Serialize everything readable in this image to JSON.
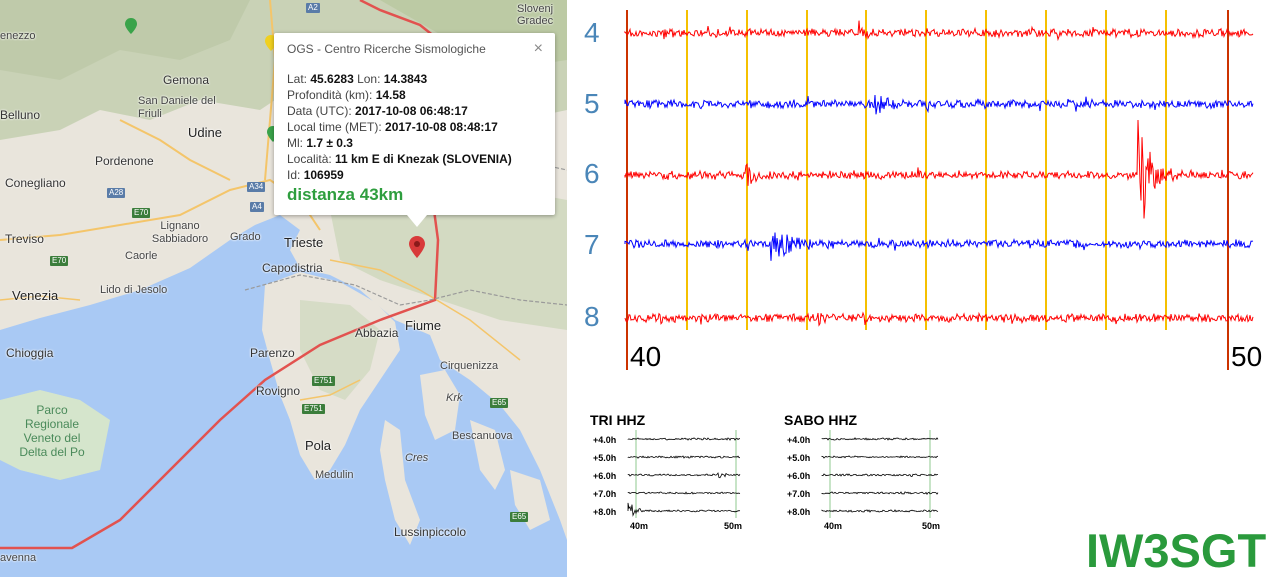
{
  "map": {
    "places": [
      {
        "name": "Slovenj Gradec",
        "type": "small"
      },
      {
        "name": "Gemona",
        "type": "city"
      },
      {
        "name": "San Daniele del Friuli",
        "type": "small"
      },
      {
        "name": "Belluno",
        "type": "city"
      },
      {
        "name": "Udine",
        "type": "big"
      },
      {
        "name": "Pordenone",
        "type": "city"
      },
      {
        "name": "Conegliano",
        "type": "city"
      },
      {
        "name": "Lignano Sabbiadoro",
        "type": "small"
      },
      {
        "name": "Grado",
        "type": "small"
      },
      {
        "name": "Treviso",
        "type": "city"
      },
      {
        "name": "Caorle",
        "type": "small"
      },
      {
        "name": "Venezia",
        "type": "big"
      },
      {
        "name": "Lido di Jesolo",
        "type": "small"
      },
      {
        "name": "Trieste",
        "type": "big"
      },
      {
        "name": "Capodistria",
        "type": "city"
      },
      {
        "name": "Abbazia",
        "type": "city"
      },
      {
        "name": "Fiume",
        "type": "big"
      },
      {
        "name": "Chioggia",
        "type": "city"
      },
      {
        "name": "Parenzo",
        "type": "city"
      },
      {
        "name": "Rovigno",
        "type": "city"
      },
      {
        "name": "Cirquenizza",
        "type": "small"
      },
      {
        "name": "Krk",
        "type": "small"
      },
      {
        "name": "Bescanuova",
        "type": "small"
      },
      {
        "name": "Pola",
        "type": "big"
      },
      {
        "name": "Cres",
        "type": "small"
      },
      {
        "name": "Medulin",
        "type": "small"
      },
      {
        "name": "Lussinpiccolo",
        "type": "city"
      },
      {
        "name": "avenna",
        "type": "small"
      },
      {
        "name": "enezzo",
        "type": "small"
      }
    ],
    "sea_label": "Parco Regionale Veneto del Delta del Po",
    "roads": [
      "A2",
      "A28",
      "A34",
      "E70",
      "E70",
      "A4",
      "E751",
      "E751",
      "E65",
      "E65"
    ],
    "colors": {
      "sea": "#a9c9f4",
      "land": "#e9e5dc",
      "mountains": "#c8d2b5",
      "border": "#e2524f",
      "pin": "#d83a3a"
    }
  },
  "popup": {
    "title": "OGS - Centro Ricerche Sismologiche",
    "close": "×",
    "rows": [
      {
        "label": "Lat: ",
        "value": "45.6283",
        "extra_label": " Lon: ",
        "extra_value": "14.3843"
      },
      {
        "label": "Profondità (km): ",
        "value": "14.58"
      },
      {
        "label": "Data (UTC): ",
        "value": "2017-10-08 06:48:17"
      },
      {
        "label": "Local time (MET): ",
        "value": "2017-10-08 08:48:17"
      },
      {
        "label": "Ml: ",
        "value": "1.7 ± 0.3"
      },
      {
        "label": "Località: ",
        "value": "11 km E di Knezak (SLOVENIA)"
      },
      {
        "label": "Id: ",
        "value": "106959"
      }
    ],
    "distance": "distanza 43km"
  },
  "seismogram": {
    "rows": [
      {
        "label": "4",
        "color": "#ff0000"
      },
      {
        "label": "5",
        "color": "#0000ff"
      },
      {
        "label": "6",
        "color": "#ff0000"
      },
      {
        "label": "7",
        "color": "#0000ff"
      },
      {
        "label": "8",
        "color": "#ff0000"
      }
    ],
    "ticks": [
      "40",
      "50"
    ],
    "gridline_color": "#f5c000",
    "edge_color": "#cc3300"
  },
  "panels": [
    {
      "title": "TRI HHZ",
      "rows": [
        "+4.0h",
        "+5.0h",
        "+6.0h",
        "+7.0h",
        "+8.0h"
      ],
      "ticks": [
        "40m",
        "50m"
      ]
    },
    {
      "title": "SABO HHZ",
      "rows": [
        "+4.0h",
        "+5.0h",
        "+6.0h",
        "+7.0h",
        "+8.0h"
      ],
      "ticks": [
        "40m",
        "50m"
      ]
    }
  ],
  "brand": "IW3SGT"
}
